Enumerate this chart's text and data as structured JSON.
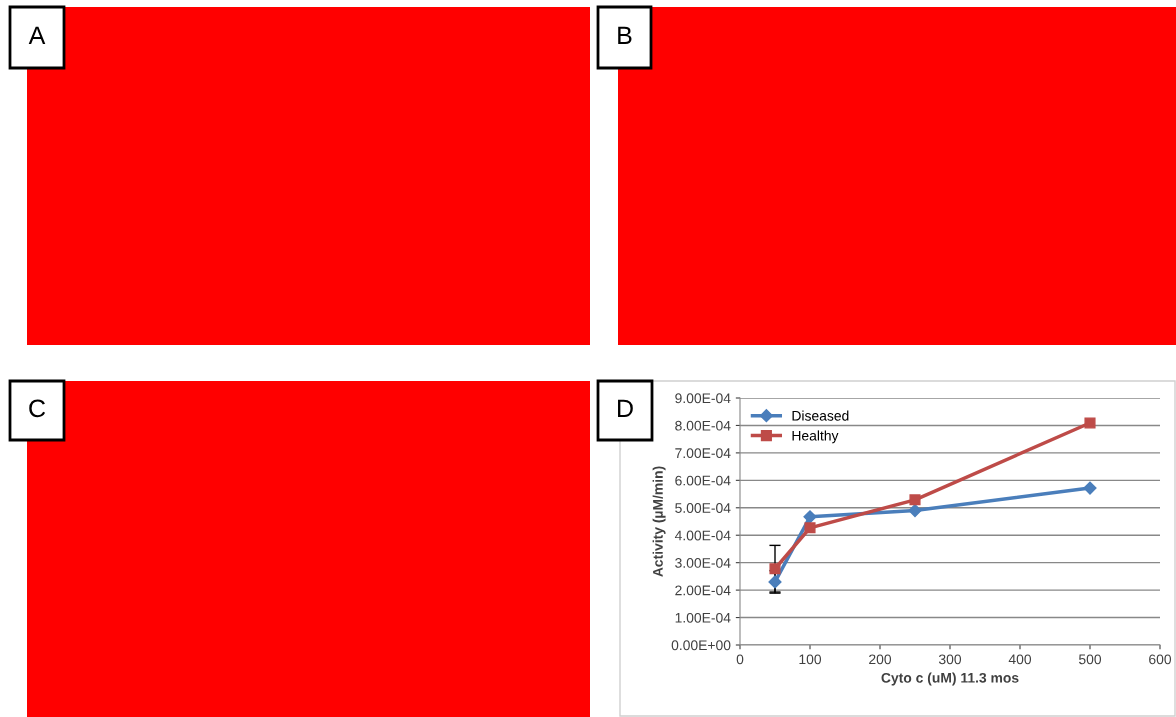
{
  "chart_data": [
    {
      "type": "other",
      "annotations": [
        "A"
      ]
    },
    {
      "type": "other",
      "annotations": [
        "B"
      ]
    },
    {
      "type": "other",
      "annotations": [
        "C"
      ]
    },
    {
      "type": "line",
      "annotations": [
        "D"
      ],
      "xlabel": "Cyto c (uM) 11.3 mos",
      "ylabel": "Activity (µM/min)",
      "series": [
        {
          "name": "Diseased",
          "color": "#4a7ebb",
          "marker": "diamond",
          "x": [
            50,
            100,
            250,
            500
          ],
          "values": [
            0.00023,
            0.000467,
            0.00049,
            0.000572
          ],
          "errors": [
            4.1e-05,
            null,
            null,
            null
          ]
        },
        {
          "name": "Healthy",
          "color": "#be4b48",
          "marker": "square",
          "x": [
            50,
            100,
            250,
            500
          ],
          "values": [
            0.000278,
            0.000427,
            0.000529,
            0.000809
          ],
          "errors": [
            8.5e-05,
            null,
            null,
            null
          ]
        }
      ],
      "xlim": [
        0,
        600
      ],
      "xticks": [
        0,
        100,
        200,
        300,
        400,
        500,
        600
      ],
      "ylim": [
        0,
        0.0009
      ],
      "yticks": [
        {
          "value": 0,
          "label": "0.00E+00"
        },
        {
          "value": 0.0001,
          "label": "1.00E-04"
        },
        {
          "value": 0.0002,
          "label": "2.00E-04"
        },
        {
          "value": 0.0003,
          "label": "3.00E-04"
        },
        {
          "value": 0.0004,
          "label": "4.00E-04"
        },
        {
          "value": 0.0005,
          "label": "5.00E-04"
        },
        {
          "value": 0.0006,
          "label": "6.00E-04"
        },
        {
          "value": 0.0007,
          "label": "7.00E-04"
        },
        {
          "value": 0.0008,
          "label": "8.00E-04"
        },
        {
          "value": 0.0009,
          "label": "9.00E-04"
        }
      ],
      "grid": "y",
      "legend": "top left",
      "line_style": "solid"
    }
  ]
}
